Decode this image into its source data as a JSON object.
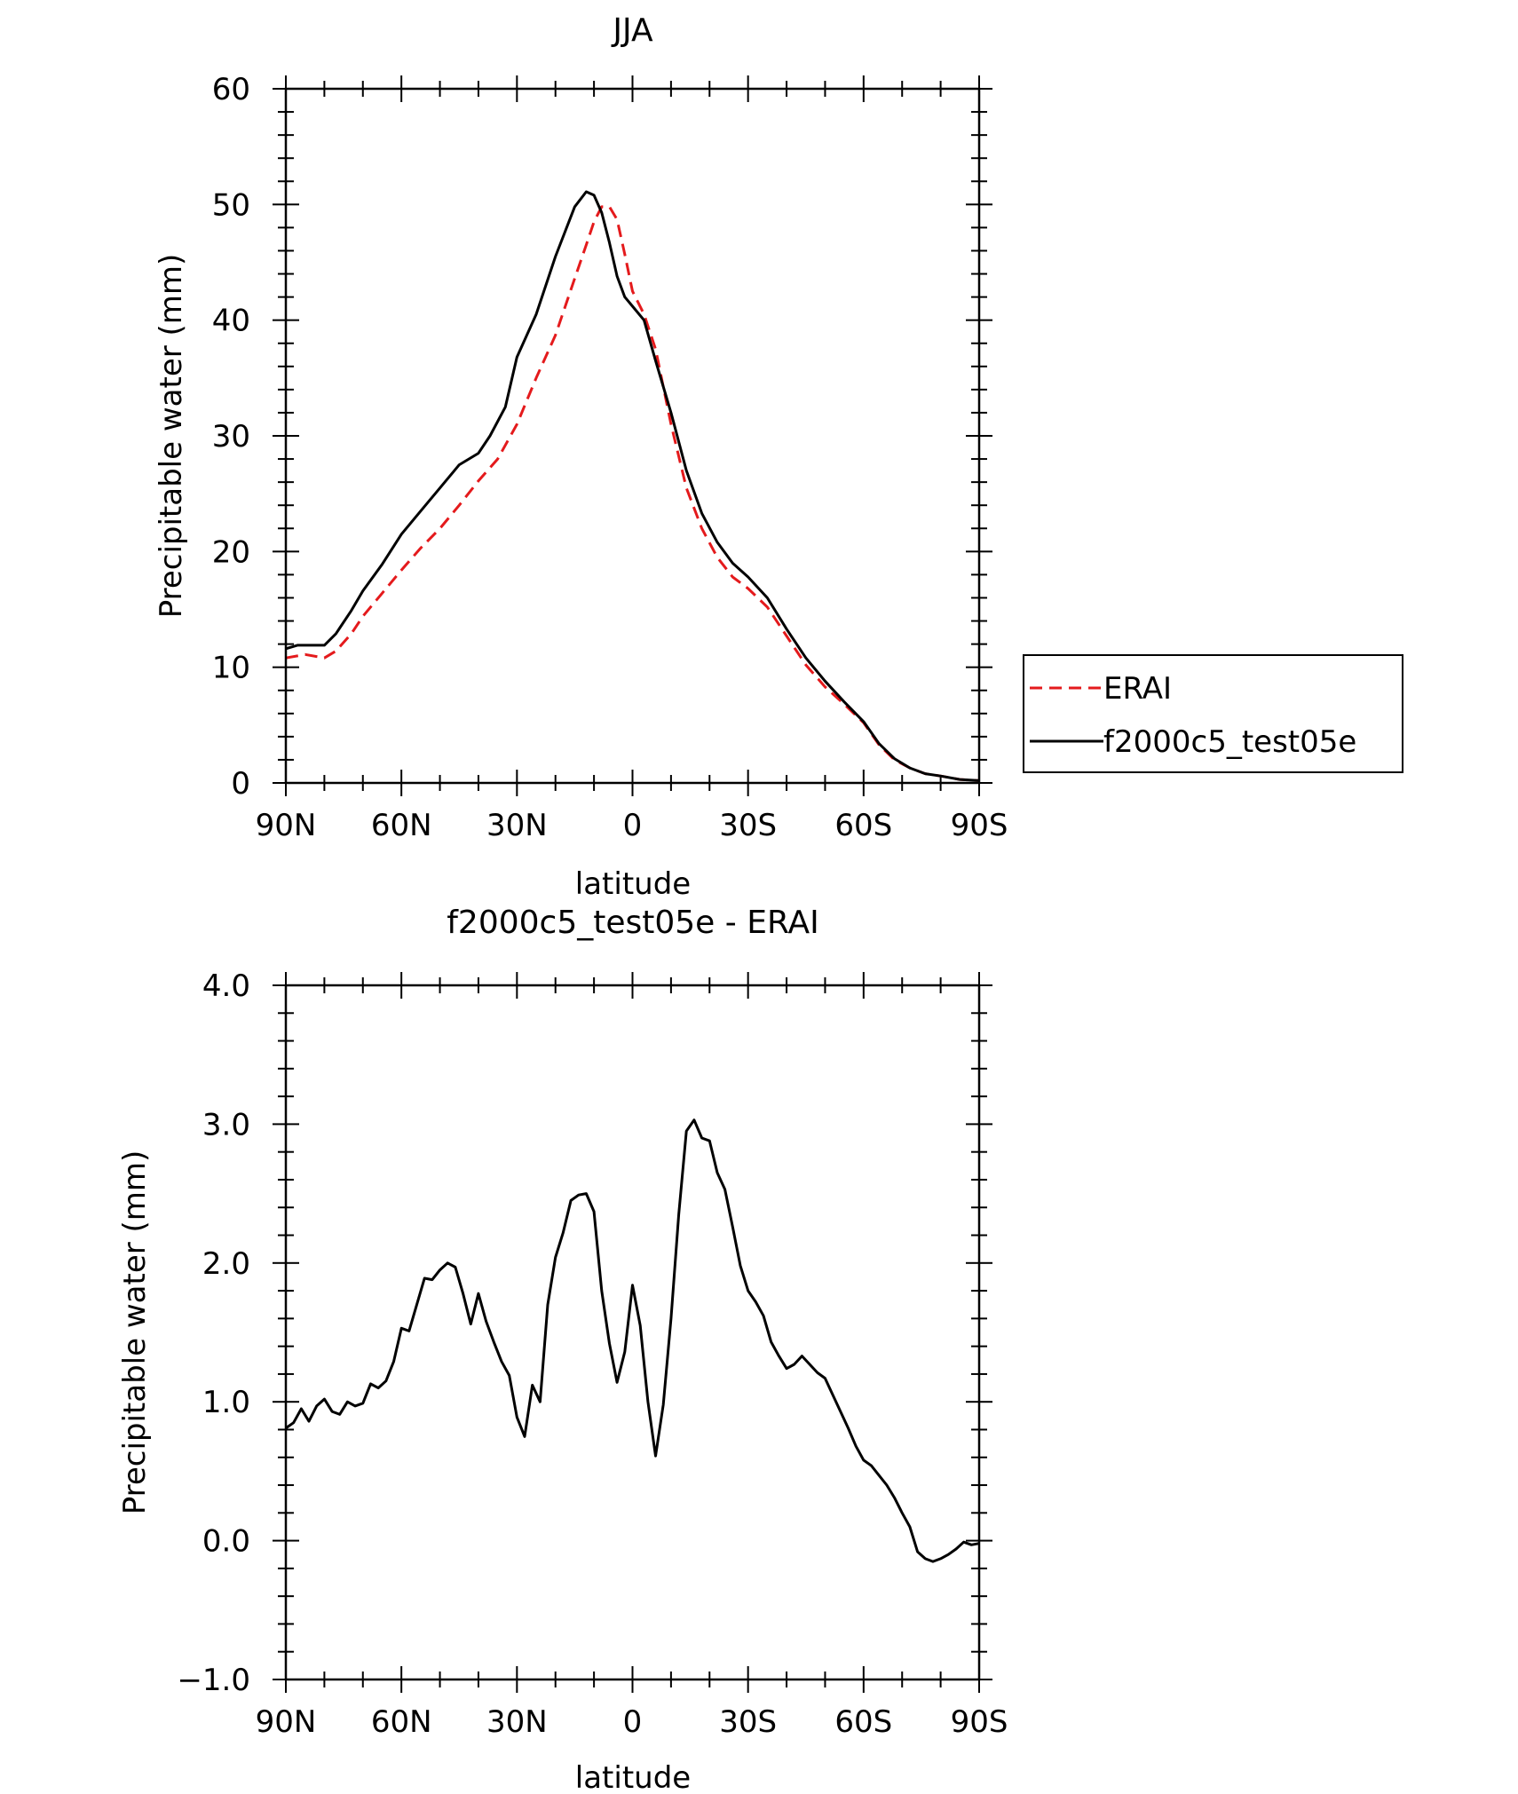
{
  "chart_data": [
    {
      "type": "line",
      "title": "JJA",
      "xlabel": "latitude",
      "ylabel": "Precipitable water (mm)",
      "xlim": [
        90,
        -90
      ],
      "ylim": [
        0,
        60
      ],
      "xticks": [
        {
          "value": 90,
          "label": "90N"
        },
        {
          "value": 60,
          "label": "60N"
        },
        {
          "value": 30,
          "label": "30N"
        },
        {
          "value": 0,
          "label": "0"
        },
        {
          "value": -30,
          "label": "30S"
        },
        {
          "value": -60,
          "label": "60S"
        },
        {
          "value": -90,
          "label": "90S"
        }
      ],
      "yticks": [
        {
          "value": 0,
          "label": "0"
        },
        {
          "value": 10,
          "label": "10"
        },
        {
          "value": 20,
          "label": "20"
        },
        {
          "value": 30,
          "label": "30"
        },
        {
          "value": 40,
          "label": "40"
        },
        {
          "value": 50,
          "label": "50"
        },
        {
          "value": 60,
          "label": "60"
        }
      ],
      "legend": {
        "position": "right"
      },
      "series": [
        {
          "name": "ERAI",
          "color": "#e41a1c",
          "dash": "dashed",
          "x": [
            90,
            85,
            80,
            77,
            73,
            70,
            65,
            60,
            55,
            50,
            45,
            40,
            35,
            30,
            25,
            20,
            15,
            12,
            10,
            8,
            6,
            4,
            2,
            0,
            -3,
            -6,
            -10,
            -14,
            -18,
            -22,
            -26,
            -30,
            -35,
            -40,
            -45,
            -50,
            -55,
            -60,
            -64,
            -68,
            -72,
            -76,
            -80,
            -85,
            -90
          ],
          "y": [
            10.8,
            11.1,
            10.8,
            11.4,
            12.9,
            14.4,
            16.4,
            18.4,
            20.3,
            22.0,
            24.0,
            26.1,
            28.0,
            31.0,
            35.0,
            38.7,
            43.6,
            46.5,
            48.5,
            49.8,
            49.8,
            48.7,
            45.7,
            42.5,
            40.5,
            37.5,
            31.0,
            25.5,
            22.0,
            19.5,
            17.8,
            16.8,
            15.2,
            12.7,
            10.2,
            8.3,
            6.8,
            5.2,
            3.3,
            2.0,
            1.3,
            0.8,
            0.6,
            0.3,
            0.2
          ]
        },
        {
          "name": "f2000c5_test05e",
          "color": "#000000",
          "dash": "solid",
          "x": [
            90,
            87,
            84,
            80,
            77,
            73,
            70,
            65,
            60,
            55,
            50,
            45,
            40,
            37,
            33,
            30,
            25,
            20,
            15,
            12,
            10,
            8,
            6,
            4,
            2,
            0,
            -3,
            -6,
            -10,
            -14,
            -18,
            -22,
            -26,
            -30,
            -35,
            -40,
            -45,
            -50,
            -55,
            -60,
            -64,
            -68,
            -72,
            -76,
            -80,
            -85,
            -90
          ],
          "y": [
            11.6,
            11.9,
            11.9,
            11.9,
            12.9,
            14.9,
            16.6,
            18.9,
            21.5,
            23.5,
            25.5,
            27.5,
            28.5,
            30.0,
            32.5,
            36.8,
            40.5,
            45.5,
            49.8,
            51.1,
            50.8,
            49.3,
            46.7,
            43.8,
            42.0,
            41.2,
            40.0,
            36.5,
            32.0,
            27.0,
            23.3,
            20.8,
            19.0,
            17.8,
            16.0,
            13.3,
            10.8,
            8.8,
            7.0,
            5.3,
            3.4,
            2.1,
            1.3,
            0.8,
            0.6,
            0.3,
            0.2
          ]
        }
      ]
    },
    {
      "type": "line",
      "title": "f2000c5_test05e - ERAI",
      "xlabel": "latitude",
      "ylabel": "Precipitable water (mm)",
      "xlim": [
        90,
        -90
      ],
      "ylim": [
        -1.0,
        4.0
      ],
      "xticks": [
        {
          "value": 90,
          "label": "90N"
        },
        {
          "value": 60,
          "label": "60N"
        },
        {
          "value": 30,
          "label": "30N"
        },
        {
          "value": 0,
          "label": "0"
        },
        {
          "value": -30,
          "label": "30S"
        },
        {
          "value": -60,
          "label": "60S"
        },
        {
          "value": -90,
          "label": "90S"
        }
      ],
      "yticks": [
        {
          "value": -1.0,
          "label": "−1.0"
        },
        {
          "value": 0.0,
          "label": "0.0"
        },
        {
          "value": 1.0,
          "label": "1.0"
        },
        {
          "value": 2.0,
          "label": "2.0"
        },
        {
          "value": 3.0,
          "label": "3.0"
        },
        {
          "value": 4.0,
          "label": "4.0"
        }
      ],
      "series": [
        {
          "name": "f2000c5_test05e - ERAI",
          "color": "#000000",
          "dash": "solid",
          "x": [
            90,
            88,
            86,
            84,
            82,
            80,
            78,
            76,
            74,
            72,
            70,
            68,
            66,
            64,
            62,
            60,
            58,
            56,
            54,
            52,
            50,
            48,
            46,
            44,
            42,
            40,
            38,
            36,
            34,
            32,
            30,
            28,
            26,
            24,
            22,
            20,
            18,
            16,
            14,
            12,
            10,
            8,
            6,
            4,
            2,
            0,
            -2,
            -4,
            -6,
            -8,
            -10,
            -12,
            -14,
            -16,
            -18,
            -20,
            -22,
            -24,
            -26,
            -28,
            -30,
            -32,
            -34,
            -36,
            -38,
            -40,
            -42,
            -44,
            -46,
            -48,
            -50,
            -52,
            -54,
            -56,
            -58,
            -60,
            -62,
            -64,
            -66,
            -68,
            -70,
            -72,
            -74,
            -76,
            -78,
            -80,
            -82,
            -84,
            -86,
            -88,
            -90
          ],
          "y": [
            0.81,
            0.85,
            0.95,
            0.86,
            0.97,
            1.02,
            0.93,
            0.91,
            1.0,
            0.97,
            0.99,
            1.13,
            1.1,
            1.15,
            1.29,
            1.53,
            1.51,
            1.7,
            1.89,
            1.88,
            1.95,
            2.0,
            1.97,
            1.78,
            1.56,
            1.78,
            1.58,
            1.43,
            1.29,
            1.19,
            0.89,
            0.75,
            1.12,
            1.0,
            1.7,
            2.04,
            2.22,
            2.45,
            2.49,
            2.5,
            2.37,
            1.8,
            1.42,
            1.14,
            1.36,
            1.84,
            1.55,
            1.0,
            0.61,
            0.98,
            1.6,
            2.35,
            2.95,
            3.03,
            2.9,
            2.88,
            2.65,
            2.53,
            2.26,
            1.98,
            1.8,
            1.72,
            1.62,
            1.43,
            1.33,
            1.24,
            1.27,
            1.33,
            1.27,
            1.21,
            1.17,
            1.05,
            0.93,
            0.81,
            0.68,
            0.58,
            0.54,
            0.47,
            0.4,
            0.31,
            0.2,
            0.1,
            -0.08,
            -0.13,
            -0.15,
            -0.13,
            -0.1,
            -0.06,
            -0.01,
            -0.03,
            -0.02
          ]
        }
      ]
    }
  ]
}
